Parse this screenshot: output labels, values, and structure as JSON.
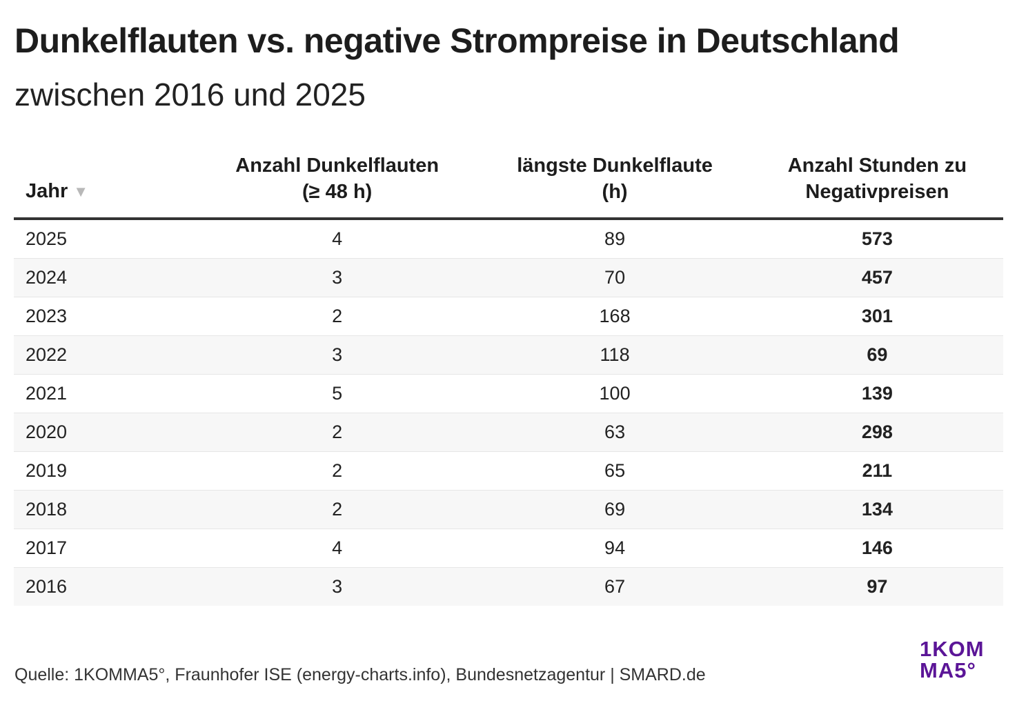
{
  "header": {
    "title": "Dunkelflauten vs. negative Strompreise in Deutschland",
    "subtitle": "zwischen 2016 und 2025"
  },
  "chart_data": {
    "type": "table",
    "columns": [
      {
        "label": "Jahr",
        "sort": "descending"
      },
      {
        "label_line1": "Anzahl Dunkelflauten",
        "label_line2": "(≥ 48 h)"
      },
      {
        "label_line1": "längste Dunkelflaute",
        "label_line2": "(h)"
      },
      {
        "label_line1": "Anzahl Stunden zu",
        "label_line2": "Negativpreisen"
      }
    ],
    "rows": [
      [
        "2025",
        "4",
        "89",
        "573"
      ],
      [
        "2024",
        "3",
        "70",
        "457"
      ],
      [
        "2023",
        "2",
        "168",
        "301"
      ],
      [
        "2022",
        "3",
        "118",
        "69"
      ],
      [
        "2021",
        "5",
        "100",
        "139"
      ],
      [
        "2020",
        "2",
        "63",
        "298"
      ],
      [
        "2019",
        "2",
        "65",
        "211"
      ],
      [
        "2018",
        "2",
        "69",
        "134"
      ],
      [
        "2017",
        "4",
        "94",
        "146"
      ],
      [
        "2016",
        "3",
        "67",
        "97"
      ]
    ]
  },
  "footer": {
    "source": "Quelle: 1KOMMA5°, Fraunhofer ISE (energy-charts.info), Bundesnetzagentur | SMARD.de",
    "logo_line1": "1KOM",
    "logo_line2": "MA5°"
  },
  "colors": {
    "logo": "#5b1597",
    "row_alt": "#f7f7f7"
  }
}
